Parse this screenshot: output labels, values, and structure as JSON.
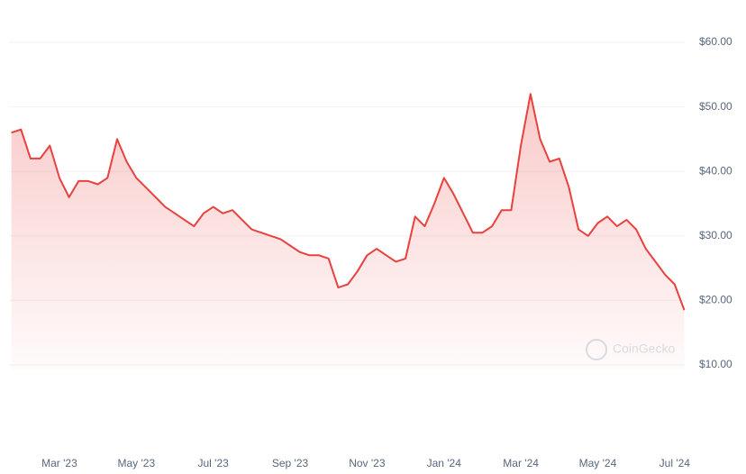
{
  "chart_data": {
    "type": "line",
    "categories": [
      null,
      null,
      null,
      null,
      null,
      "Mar '23",
      null,
      null,
      null,
      null,
      null,
      null,
      null,
      "May '23",
      null,
      null,
      null,
      null,
      null,
      null,
      null,
      "Jul '23",
      null,
      null,
      null,
      null,
      null,
      null,
      null,
      "Sep '23",
      null,
      null,
      null,
      null,
      null,
      null,
      null,
      "Nov '23",
      null,
      null,
      null,
      null,
      null,
      null,
      null,
      "Jan '24",
      null,
      null,
      null,
      null,
      null,
      null,
      null,
      "Mar '24",
      null,
      null,
      null,
      null,
      null,
      null,
      null,
      "May '24",
      null,
      null,
      null,
      null,
      null,
      null,
      null,
      "Jul '24",
      null
    ],
    "values": [
      46,
      46.5,
      42,
      42,
      44,
      39,
      36,
      38.5,
      38.5,
      38,
      39,
      45,
      41.5,
      39,
      37.5,
      36,
      34.5,
      33.5,
      32.5,
      31.5,
      33.5,
      34.5,
      33.5,
      34,
      32.5,
      31,
      30.5,
      30,
      29.5,
      28.5,
      27.5,
      27,
      27,
      26.5,
      22,
      22.5,
      24.5,
      27,
      28,
      27,
      26,
      26.5,
      33,
      31.5,
      35,
      39,
      36.5,
      33.5,
      30.5,
      30.5,
      31.5,
      34,
      34,
      44,
      52,
      45,
      41.5,
      42,
      37.5,
      31,
      30,
      32,
      33,
      31.5,
      32.5,
      31,
      28,
      26,
      24,
      22.5,
      18.5
    ],
    "color": "#e8413e",
    "ylim": [
      10,
      60
    ],
    "yticks": [
      {
        "value": 10,
        "label": "$10.00"
      },
      {
        "value": 20,
        "label": "$20.00"
      },
      {
        "value": 30,
        "label": "$30.00"
      },
      {
        "value": 40,
        "label": "$40.00"
      },
      {
        "value": 50,
        "label": "$50.00"
      },
      {
        "value": 60,
        "label": "$60.00"
      }
    ],
    "grid": true,
    "watermark": "CoinGecko"
  }
}
